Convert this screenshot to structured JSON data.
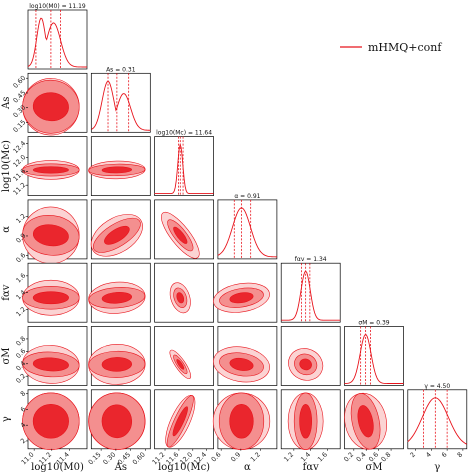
{
  "chart_data": {
    "type": "corner",
    "params": [
      {
        "key": "logM0",
        "label": "log10(M0)",
        "title": "log10(M0) = 11.19",
        "median": 11.19,
        "lo": 11.02,
        "hi": 11.3,
        "range": [
          10.93,
          11.6
        ],
        "ticks": [
          11.0,
          11.2,
          11.4
        ],
        "tick_labels": [
          "11.0",
          "11.2",
          "11.4"
        ]
      },
      {
        "key": "As",
        "label": "As",
        "title": "As = 0.31",
        "median": 0.31,
        "lo": 0.22,
        "hi": 0.43,
        "range": [
          0.05,
          0.65
        ],
        "ticks": [
          0.15,
          0.3,
          0.45,
          0.6
        ],
        "tick_labels": [
          "0.15",
          "0.30",
          "0.45",
          "0.60"
        ]
      },
      {
        "key": "logMc",
        "label": "log10(Mc)",
        "title": "log10(Mc) = 11.64",
        "median": 11.64,
        "lo": 11.59,
        "hi": 11.72,
        "range": [
          10.9,
          12.6
        ],
        "ticks": [
          11.2,
          11.6,
          12.0,
          12.4
        ],
        "tick_labels": [
          "11.2",
          "11.6",
          "12.0",
          "12.4"
        ]
      },
      {
        "key": "alpha",
        "label": "α",
        "title": "α = 0.91",
        "median": 0.91,
        "lo": 0.8,
        "hi": 1.05,
        "range": [
          0.55,
          1.45
        ],
        "ticks": [
          0.6,
          0.9,
          1.2
        ],
        "tick_labels": [
          "0.6",
          "0.9",
          "1.2"
        ]
      },
      {
        "key": "fa",
        "label": "fαv",
        "title": "fαv = 1.34",
        "median": 1.34,
        "lo": 1.29,
        "hi": 1.39,
        "range": [
          1.05,
          1.75
        ],
        "ticks": [
          1.2,
          1.4,
          1.6
        ],
        "tick_labels": [
          "1.2",
          "1.4",
          "1.6"
        ]
      },
      {
        "key": "sigmaM",
        "label": "σM",
        "title": "σM = 0.39",
        "median": 0.39,
        "lo": 0.31,
        "hi": 0.47,
        "range": [
          0.05,
          1.0
        ],
        "ticks": [
          0.2,
          0.4,
          0.6,
          0.8
        ],
        "tick_labels": [
          "0.2",
          "0.4",
          "0.6",
          "0.8"
        ]
      },
      {
        "key": "gamma",
        "label": "γ",
        "title": "γ = 4.50",
        "median": 4.5,
        "lo": 3.0,
        "hi": 6.0,
        "range": [
          1.0,
          8.5
        ],
        "ticks": [
          2,
          4,
          6,
          8
        ],
        "tick_labels": [
          "2",
          "4",
          "6",
          "8"
        ]
      }
    ],
    "legend": {
      "label": "mHMQ+conf",
      "position": "top-right"
    },
    "colors": {
      "line": "#e8141c",
      "fill_outer": "#fbd3d3",
      "fill_mid": "#f48f8f",
      "fill_inner": "#e8141c"
    }
  }
}
